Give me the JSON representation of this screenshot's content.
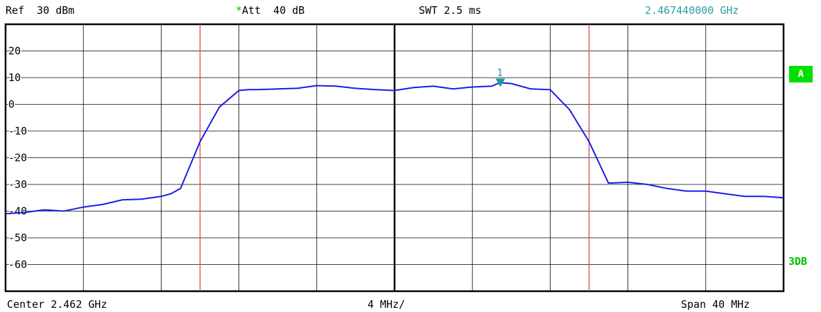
{
  "header": {
    "ref": "Ref  30 dBm",
    "att_star": "*",
    "att": "Att  40 dB",
    "swt": "SWT 2.5 ms",
    "marker_freq": "2.467440000 GHz"
  },
  "footer": {
    "center": "Center 2.462 GHz",
    "div": "4 MHz/",
    "span": "Span 40 MHz"
  },
  "side": {
    "trace_badge": "A",
    "mode": "3DB"
  },
  "colors": {
    "trace": "#1a1ae6",
    "vline": "#d04040",
    "grid": "#000000",
    "marker": "#1a9a9a",
    "badge": "#00e000"
  },
  "chart_data": {
    "type": "line",
    "title": "",
    "xlabel": "",
    "ylabel": "",
    "x_unit": "GHz",
    "y_unit": "dBm",
    "xlim": [
      2.442,
      2.482
    ],
    "ylim": [
      -70,
      30
    ],
    "y_ticks": [
      {
        "value": 20,
        "label": "20"
      },
      {
        "value": 10,
        "label": "10"
      },
      {
        "value": 0,
        "label": "0"
      },
      {
        "value": -10,
        "label": "-10"
      },
      {
        "value": -20,
        "label": "-20"
      },
      {
        "value": -30,
        "label": "-30"
      },
      {
        "value": -40,
        "label": "-40"
      },
      {
        "value": -50,
        "label": "-50"
      },
      {
        "value": -60,
        "label": "-60"
      }
    ],
    "grid": true,
    "x_divisions": 10,
    "y_divisions": 10,
    "vertical_lines_x": [
      2.452,
      2.472
    ],
    "marker": {
      "label": "1",
      "x": 2.46744,
      "y": 8.1
    },
    "series": [
      {
        "x": [
          2.442,
          2.443,
          2.444,
          2.445,
          2.446,
          2.447,
          2.448,
          2.449,
          2.45,
          2.4505,
          2.451,
          2.452,
          2.453,
          2.454,
          2.4545,
          2.455,
          2.456,
          2.457,
          2.458,
          2.459,
          2.46,
          2.461,
          2.462,
          2.463,
          2.464,
          2.465,
          2.466,
          2.467,
          2.4674,
          2.468,
          2.469,
          2.47,
          2.471,
          2.472,
          2.473,
          2.474,
          2.475,
          2.476,
          2.477,
          2.478,
          2.479,
          2.48,
          2.481,
          2.482
        ],
        "y": [
          -41,
          -40.5,
          -39.5,
          -40,
          -38.5,
          -37.5,
          -35.8,
          -35.5,
          -34.5,
          -33.5,
          -31.5,
          -14,
          -1,
          5.2,
          5.5,
          5.5,
          5.8,
          6.0,
          7.0,
          6.8,
          6.0,
          5.5,
          5.2,
          6.3,
          6.8,
          5.8,
          6.5,
          6.8,
          8.1,
          7.8,
          5.8,
          5.5,
          -2,
          -14,
          -29.5,
          -29.2,
          -30,
          -31.5,
          -32.5,
          -32.5,
          -33.5,
          -34.5,
          -34.5,
          -35
        ]
      }
    ]
  }
}
